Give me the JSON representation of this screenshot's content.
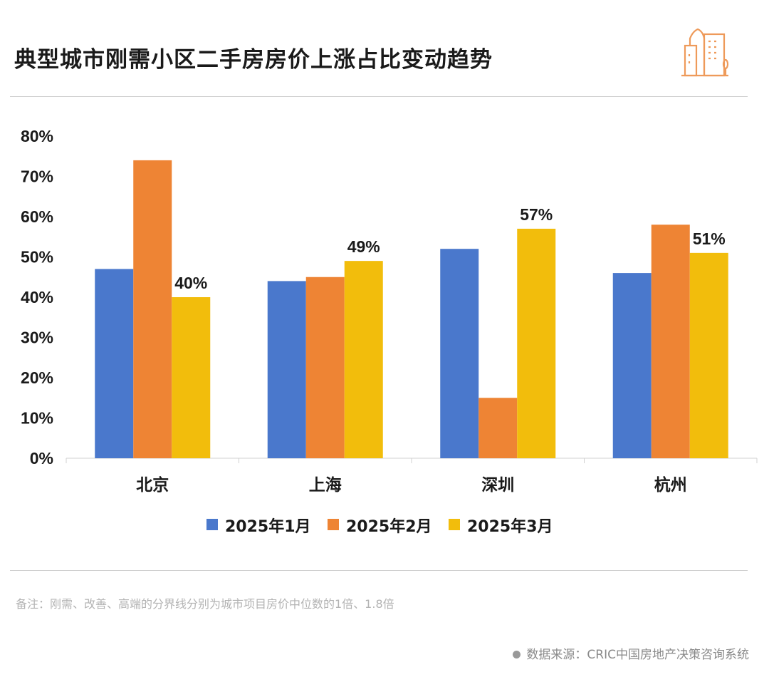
{
  "title": "典型城市刚需小区二手房房价上涨占比变动趋势",
  "logo_icon": "city-buildings-icon",
  "note": "备注：刚需、改善、高端的分界线分别为城市项目房价中位数的1倍、1.8倍",
  "source": "数据来源：CRIC中国房地产决策咨询系统",
  "chart_data": {
    "type": "bar",
    "categories": [
      "北京",
      "上海",
      "深圳",
      "杭州"
    ],
    "series": [
      {
        "name": "2025年1月",
        "color": "#4a78cc",
        "values": [
          47,
          44,
          52,
          46
        ]
      },
      {
        "name": "2025年2月",
        "color": "#ee8434",
        "values": [
          74,
          45,
          15,
          58
        ]
      },
      {
        "name": "2025年3月",
        "color": "#f2bd0c",
        "values": [
          40,
          49,
          57,
          51
        ]
      }
    ],
    "data_labels": {
      "series": 2,
      "labels": [
        "40%",
        "49%",
        "57%",
        "51%"
      ]
    },
    "yticks": [
      "0%",
      "10%",
      "20%",
      "30%",
      "40%",
      "50%",
      "60%",
      "70%",
      "80%"
    ],
    "ylim": [
      0,
      80
    ],
    "grid": false,
    "legend": "bottom"
  }
}
